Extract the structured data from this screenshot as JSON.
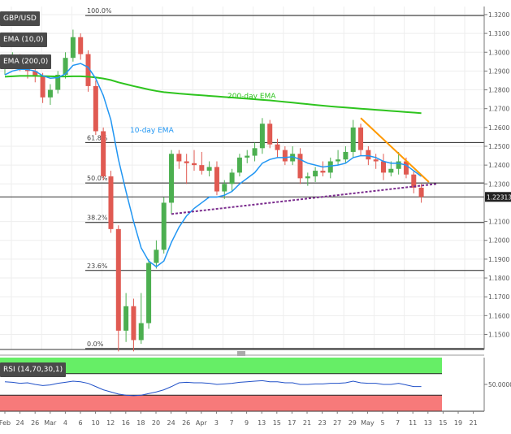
{
  "indicators": {
    "symbol": "GBP/USD",
    "ema_fast": "EMA (10,0)",
    "ema_slow": "EMA (200,0)",
    "rsi": "RSI (14,70,30,1)"
  },
  "colors": {
    "bull": "#4caf50",
    "bear": "#e05a52",
    "ema10": "#2196f3",
    "ema200": "#2ec41e",
    "resistance": "#ff9900",
    "support": "#7b2d8e",
    "rsi_over": "#66ee66",
    "rsi_under": "#f77a7a",
    "rsi_line": "#2151c8"
  },
  "chart_data": [
    {
      "type": "candlestick",
      "title": "",
      "ylim": [
        1.14,
        1.32
      ],
      "y_ticks": [
        "1.3200",
        "1.3100",
        "1.3000",
        "1.2900",
        "1.2800",
        "1.2700",
        "1.2600",
        "1.2500",
        "1.2400",
        "1.2300",
        "1.2100",
        "1.2000",
        "1.1900",
        "1.1800",
        "1.1700",
        "1.1600",
        "1.1500"
      ],
      "x_ticks": [
        "Feb",
        "24",
        "26",
        "Mar",
        "4",
        "6",
        "10",
        "12",
        "16",
        "18",
        "20",
        "24",
        "26",
        "Apr",
        "3",
        "7",
        "9",
        "13",
        "15",
        "17",
        "21",
        "23",
        "27",
        "29",
        "May",
        "5",
        "7",
        "11",
        "13",
        "15",
        "19",
        "21"
      ],
      "current_price": "1.223130",
      "candles": [
        {
          "o": 1.2915,
          "h": 1.296,
          "l": 1.288,
          "c": 1.294
        },
        {
          "o": 1.294,
          "h": 1.3,
          "l": 1.291,
          "c": 1.296
        },
        {
          "o": 1.296,
          "h": 1.299,
          "l": 1.29,
          "c": 1.292
        },
        {
          "o": 1.292,
          "h": 1.296,
          "l": 1.286,
          "c": 1.29
        },
        {
          "o": 1.29,
          "h": 1.293,
          "l": 1.284,
          "c": 1.287
        },
        {
          "o": 1.287,
          "h": 1.289,
          "l": 1.273,
          "c": 1.276
        },
        {
          "o": 1.276,
          "h": 1.283,
          "l": 1.272,
          "c": 1.28
        },
        {
          "o": 1.28,
          "h": 1.29,
          "l": 1.278,
          "c": 1.288
        },
        {
          "o": 1.288,
          "h": 1.3,
          "l": 1.286,
          "c": 1.297
        },
        {
          "o": 1.297,
          "h": 1.312,
          "l": 1.295,
          "c": 1.308
        },
        {
          "o": 1.308,
          "h": 1.31,
          "l": 1.296,
          "c": 1.299
        },
        {
          "o": 1.299,
          "h": 1.301,
          "l": 1.279,
          "c": 1.282
        },
        {
          "o": 1.282,
          "h": 1.285,
          "l": 1.256,
          "c": 1.258
        },
        {
          "o": 1.258,
          "h": 1.26,
          "l": 1.232,
          "c": 1.234
        },
        {
          "o": 1.234,
          "h": 1.237,
          "l": 1.204,
          "c": 1.206
        },
        {
          "o": 1.206,
          "h": 1.208,
          "l": 1.141,
          "c": 1.152
        },
        {
          "o": 1.152,
          "h": 1.172,
          "l": 1.146,
          "c": 1.165
        },
        {
          "o": 1.165,
          "h": 1.169,
          "l": 1.141,
          "c": 1.147
        },
        {
          "o": 1.147,
          "h": 1.172,
          "l": 1.145,
          "c": 1.156
        },
        {
          "o": 1.156,
          "h": 1.19,
          "l": 1.153,
          "c": 1.188
        },
        {
          "o": 1.188,
          "h": 1.2,
          "l": 1.185,
          "c": 1.195
        },
        {
          "o": 1.195,
          "h": 1.223,
          "l": 1.193,
          "c": 1.22
        },
        {
          "o": 1.22,
          "h": 1.248,
          "l": 1.214,
          "c": 1.246
        },
        {
          "o": 1.246,
          "h": 1.248,
          "l": 1.238,
          "c": 1.242
        },
        {
          "o": 1.242,
          "h": 1.246,
          "l": 1.23,
          "c": 1.241
        },
        {
          "o": 1.241,
          "h": 1.248,
          "l": 1.237,
          "c": 1.24
        },
        {
          "o": 1.24,
          "h": 1.247,
          "l": 1.235,
          "c": 1.237
        },
        {
          "o": 1.237,
          "h": 1.242,
          "l": 1.234,
          "c": 1.239
        },
        {
          "o": 1.239,
          "h": 1.242,
          "l": 1.224,
          "c": 1.226
        },
        {
          "o": 1.226,
          "h": 1.232,
          "l": 1.222,
          "c": 1.23
        },
        {
          "o": 1.23,
          "h": 1.238,
          "l": 1.226,
          "c": 1.236
        },
        {
          "o": 1.236,
          "h": 1.246,
          "l": 1.234,
          "c": 1.244
        },
        {
          "o": 1.244,
          "h": 1.248,
          "l": 1.241,
          "c": 1.245
        },
        {
          "o": 1.245,
          "h": 1.252,
          "l": 1.242,
          "c": 1.249
        },
        {
          "o": 1.249,
          "h": 1.265,
          "l": 1.246,
          "c": 1.262
        },
        {
          "o": 1.262,
          "h": 1.264,
          "l": 1.249,
          "c": 1.251
        },
        {
          "o": 1.251,
          "h": 1.254,
          "l": 1.244,
          "c": 1.248
        },
        {
          "o": 1.248,
          "h": 1.25,
          "l": 1.24,
          "c": 1.242
        },
        {
          "o": 1.242,
          "h": 1.25,
          "l": 1.24,
          "c": 1.246
        },
        {
          "o": 1.246,
          "h": 1.249,
          "l": 1.23,
          "c": 1.233
        },
        {
          "o": 1.233,
          "h": 1.236,
          "l": 1.229,
          "c": 1.234
        },
        {
          "o": 1.234,
          "h": 1.239,
          "l": 1.231,
          "c": 1.237
        },
        {
          "o": 1.237,
          "h": 1.242,
          "l": 1.234,
          "c": 1.236
        },
        {
          "o": 1.236,
          "h": 1.244,
          "l": 1.233,
          "c": 1.242
        },
        {
          "o": 1.242,
          "h": 1.248,
          "l": 1.24,
          "c": 1.243
        },
        {
          "o": 1.243,
          "h": 1.25,
          "l": 1.241,
          "c": 1.247
        },
        {
          "o": 1.247,
          "h": 1.264,
          "l": 1.244,
          "c": 1.26
        },
        {
          "o": 1.26,
          "h": 1.262,
          "l": 1.245,
          "c": 1.248
        },
        {
          "o": 1.248,
          "h": 1.25,
          "l": 1.24,
          "c": 1.243
        },
        {
          "o": 1.243,
          "h": 1.246,
          "l": 1.238,
          "c": 1.242
        },
        {
          "o": 1.242,
          "h": 1.246,
          "l": 1.232,
          "c": 1.236
        },
        {
          "o": 1.236,
          "h": 1.242,
          "l": 1.234,
          "c": 1.238
        },
        {
          "o": 1.238,
          "h": 1.247,
          "l": 1.235,
          "c": 1.242
        },
        {
          "o": 1.242,
          "h": 1.244,
          "l": 1.233,
          "c": 1.235
        },
        {
          "o": 1.235,
          "h": 1.237,
          "l": 1.225,
          "c": 1.228
        },
        {
          "o": 1.228,
          "h": 1.23,
          "l": 1.22,
          "c": 1.2231
        }
      ],
      "ema10": [
        1.288,
        1.29,
        1.291,
        1.2908,
        1.29,
        1.2875,
        1.2862,
        1.2865,
        1.2885,
        1.293,
        1.294,
        1.292,
        1.286,
        1.277,
        1.264,
        1.243,
        1.226,
        1.21,
        1.196,
        1.189,
        1.186,
        1.189,
        1.199,
        1.207,
        1.213,
        1.217,
        1.22,
        1.223,
        1.223,
        1.224,
        1.226,
        1.23,
        1.233,
        1.236,
        1.241,
        1.243,
        1.244,
        1.244,
        1.2445,
        1.243,
        1.241,
        1.24,
        1.239,
        1.2395,
        1.24,
        1.241,
        1.244,
        1.245,
        1.245,
        1.244,
        1.242,
        1.241,
        1.241,
        1.24,
        1.237,
        1.234
      ],
      "ema200": [
        1.287,
        1.2872,
        1.2874,
        1.2874,
        1.2874,
        1.2873,
        1.2872,
        1.2871,
        1.2871,
        1.2872,
        1.2872,
        1.287,
        1.2866,
        1.286,
        1.2852,
        1.284,
        1.283,
        1.282,
        1.2811,
        1.2802,
        1.2794,
        1.2788,
        1.2784,
        1.278,
        1.2777,
        1.2774,
        1.2771,
        1.2768,
        1.2765,
        1.2762,
        1.2759,
        1.2756,
        1.2753,
        1.275,
        1.2747,
        1.2744,
        1.274,
        1.2736,
        1.2732,
        1.2728,
        1.2724,
        1.272,
        1.2716,
        1.2712,
        1.2709,
        1.2706,
        1.2703,
        1.27,
        1.2697,
        1.2694,
        1.2691,
        1.2688,
        1.2685,
        1.2682,
        1.2679,
        1.2676
      ],
      "fibonacci": [
        {
          "label": "100.0%",
          "value": 1.3195
        },
        {
          "label": "61.8%",
          "value": 1.252
        },
        {
          "label": "50.0%",
          "value": 1.2305
        },
        {
          "label": "38.2%",
          "value": 1.2095
        },
        {
          "label": "23.6%",
          "value": 1.184
        },
        {
          "label": "0.0%",
          "value": 1.1425
        }
      ],
      "current_line": 1.2231,
      "annotations": [
        {
          "text": "200-day EMA",
          "color": "#2ec41e"
        },
        {
          "text": "10-day EMA",
          "color": "#2196f3"
        }
      ],
      "resistance_line": {
        "start": [
          47,
          1.265
        ],
        "end": [
          56,
          1.231
        ]
      },
      "support_line": {
        "start": [
          22,
          1.214
        ],
        "end": [
          57,
          1.23
        ]
      }
    },
    {
      "type": "line",
      "title": "",
      "ylim": [
        0,
        100
      ],
      "y_ticks": [
        "50.0000"
      ],
      "overbought": 70,
      "oversold": 30,
      "values": [
        55,
        54,
        52,
        53,
        50,
        48,
        49,
        52,
        54,
        56,
        55,
        52,
        46,
        40,
        36,
        32,
        30,
        29,
        30,
        33,
        36,
        40,
        46,
        53,
        54,
        53,
        53,
        52,
        50,
        51,
        52,
        54,
        55,
        56,
        57,
        55,
        55,
        53,
        53,
        50,
        50,
        51,
        51,
        52,
        52,
        53,
        56,
        53,
        52,
        52,
        50,
        50,
        52,
        49,
        46,
        46
      ]
    }
  ]
}
